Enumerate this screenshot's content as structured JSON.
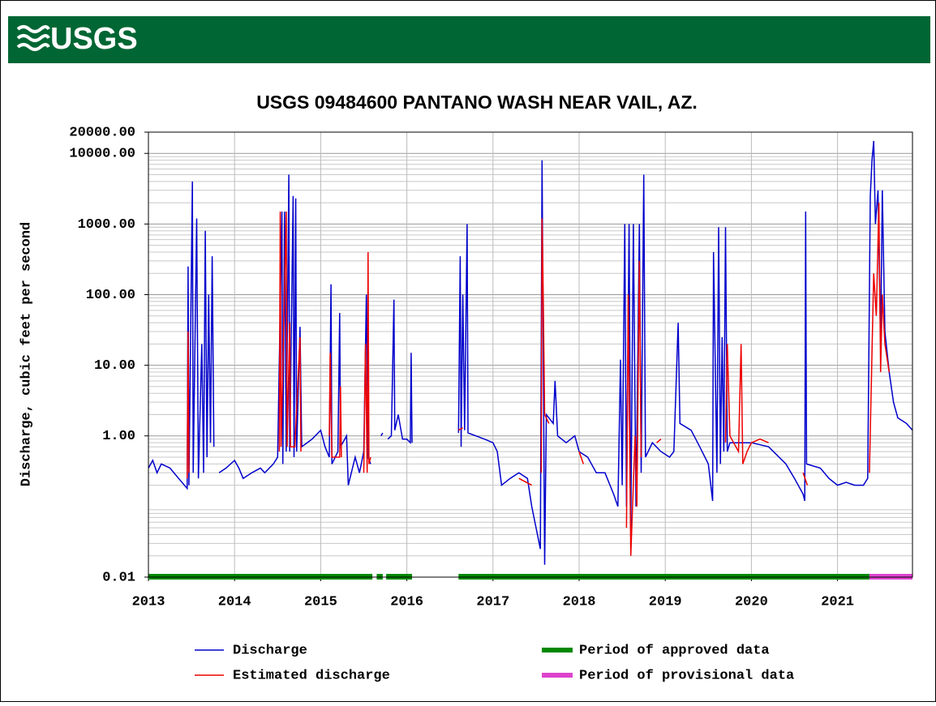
{
  "header": {
    "logo": "USGS"
  },
  "chart_data": {
    "type": "line",
    "title": "USGS 09484600 PANTANO WASH NEAR VAIL, AZ.",
    "y_label": "Discharge, cubic feet per second",
    "xlim": [
      2013,
      2021.87
    ],
    "xticks": [
      2013,
      2014,
      2015,
      2016,
      2017,
      2018,
      2019,
      2020,
      2021
    ],
    "ylim": [
      0.01,
      20000
    ],
    "ylog": true,
    "grid": true,
    "legend": "bottom",
    "yticks": [
      {
        "value": 0.01,
        "label": "0.01"
      },
      {
        "value": 1,
        "label": "1.00"
      },
      {
        "value": 10,
        "label": "10.00"
      },
      {
        "value": 100,
        "label": "100.00"
      },
      {
        "value": 1000,
        "label": "1000.00"
      },
      {
        "value": 10000,
        "label": "10000.00"
      },
      {
        "value": 20000,
        "label": "20000.00"
      }
    ],
    "series": [
      {
        "name": "Discharge",
        "color": "#0000cc",
        "x": [
          2013.0,
          2013.05,
          2013.1,
          2013.15,
          2013.25,
          2013.35,
          2013.45,
          2013.46,
          2013.47,
          2013.51,
          2013.52,
          2013.56,
          2013.58,
          2013.62,
          2013.64,
          2013.66,
          2013.68,
          2013.7,
          2013.72,
          2013.74,
          2013.76,
          null,
          2013.82,
          2013.9,
          2014.0,
          2014.05,
          2014.1,
          2014.2,
          2014.3,
          2014.35,
          2014.45,
          2014.5,
          2014.55,
          2014.56,
          2014.58,
          2014.6,
          2014.63,
          2014.64,
          2014.68,
          2014.69,
          2014.71,
          2014.72,
          2014.76,
          2014.78,
          2014.9,
          2015.0,
          2015.05,
          2015.1,
          2015.12,
          2015.13,
          2015.2,
          2015.22,
          2015.23,
          2015.3,
          2015.32,
          2015.4,
          2015.45,
          2015.5,
          2015.53,
          2015.55,
          2015.58,
          null,
          2015.7,
          2015.72,
          null,
          2015.78,
          2015.82,
          2015.85,
          2015.86,
          2015.9,
          2015.95,
          2016.0,
          2016.04,
          2016.05,
          2016.06,
          null,
          2016.6,
          2016.62,
          2016.63,
          2016.65,
          2016.67,
          2016.7,
          2016.71,
          2016.8,
          2016.9,
          2017.0,
          2017.05,
          2017.1,
          2017.2,
          2017.3,
          2017.4,
          2017.45,
          2017.5,
          2017.55,
          2017.57,
          2017.6,
          2017.62,
          2017.7,
          2017.72,
          2017.75,
          2017.85,
          2017.95,
          2018.0,
          2018.1,
          2018.2,
          2018.3,
          2018.4,
          2018.45,
          2018.48,
          2018.5,
          2018.53,
          2018.55,
          2018.58,
          2018.6,
          2018.63,
          2018.66,
          2018.7,
          2018.72,
          2018.75,
          2018.77,
          2018.85,
          2018.95,
          2019.05,
          2019.1,
          2019.15,
          2019.17,
          2019.3,
          2019.4,
          2019.5,
          2019.55,
          2019.56,
          2019.6,
          2019.62,
          2019.64,
          2019.66,
          2019.68,
          2019.7,
          2019.72,
          2019.75,
          2020.0,
          2020.2,
          2020.4,
          2020.5,
          2020.6,
          2020.62,
          2020.63,
          2020.64,
          2020.8,
          2020.9,
          2021.0,
          2021.1,
          2021.2,
          2021.3,
          2021.35,
          2021.38,
          2021.4,
          2021.42,
          2021.44,
          2021.47,
          2021.5,
          2021.52,
          2021.55,
          2021.6,
          2021.65,
          2021.7,
          2021.8,
          2021.87
        ],
        "values": [
          0.35,
          0.45,
          0.3,
          0.4,
          0.35,
          0.25,
          0.18,
          250,
          0.2,
          4000,
          0.3,
          1200,
          0.25,
          20,
          0.3,
          800,
          0.5,
          100,
          0.8,
          350,
          0.7,
          null,
          0.3,
          0.35,
          0.45,
          0.35,
          0.25,
          0.3,
          0.35,
          0.3,
          0.4,
          0.5,
          1500,
          0.4,
          1500,
          0.6,
          5000,
          0.6,
          2500,
          0.5,
          2300,
          0.6,
          35,
          0.7,
          0.9,
          1.2,
          0.7,
          0.5,
          140,
          0.4,
          0.6,
          55,
          0.7,
          1.0,
          0.2,
          0.5,
          0.3,
          0.6,
          100,
          0.5,
          0.4,
          null,
          1.0,
          1.1,
          null,
          0.9,
          1.0,
          85,
          1.2,
          2.0,
          0.9,
          0.9,
          0.8,
          15,
          0.8,
          null,
          1.1,
          350,
          0.7,
          100,
          1.2,
          1000,
          1.1,
          1.0,
          0.9,
          0.8,
          0.6,
          0.2,
          0.25,
          0.3,
          0.25,
          0.1,
          0.05,
          0.025,
          8000,
          0.015,
          2,
          1.5,
          6,
          1.0,
          0.8,
          1.0,
          0.6,
          0.5,
          0.3,
          0.3,
          0.15,
          0.1,
          12,
          0.2,
          1000,
          0.1,
          1000,
          0.05,
          1000,
          0.1,
          1000,
          0.3,
          5000,
          0.5,
          0.8,
          0.6,
          0.5,
          0.6,
          40,
          1.5,
          1.2,
          0.7,
          0.4,
          0.12,
          400,
          0.3,
          900,
          0.4,
          25,
          0.6,
          900,
          0.6,
          0.8,
          0.8,
          0.7,
          0.4,
          0.25,
          0.15,
          0.12,
          1500,
          0.4,
          0.35,
          0.25,
          0.2,
          0.22,
          0.2,
          0.2,
          0.25,
          2500,
          8000,
          15000,
          1000,
          3000,
          20,
          3000,
          30,
          8,
          3,
          1.8,
          1.5,
          1.2
        ]
      },
      {
        "name": "Estimated discharge",
        "color": "#ee0000",
        "x": [
          2013.45,
          2013.46,
          2013.47,
          null,
          2014.52,
          2014.53,
          2014.54,
          2014.6,
          2014.61,
          2014.64,
          2014.65,
          2014.7,
          2014.76,
          2014.77,
          null,
          2015.1,
          2015.11,
          2015.13,
          2015.22,
          2015.23,
          2015.24,
          null,
          2015.5,
          2015.52,
          2015.54,
          2015.55,
          2015.56,
          2015.58,
          null,
          2016.6,
          2016.65,
          null,
          2017.3,
          2017.45,
          null,
          2017.56,
          2017.57,
          2017.58,
          2017.6,
          2017.65,
          null,
          2018.0,
          2018.05,
          null,
          2018.55,
          2018.57,
          2018.6,
          2018.65,
          2018.67,
          2018.7,
          2018.72,
          null,
          2018.9,
          2018.95,
          null,
          2019.7,
          2019.72,
          2019.75,
          2019.85,
          2019.88,
          2019.9,
          2019.95,
          2020.0,
          2020.1,
          2020.2,
          null,
          2020.6,
          2020.65,
          null,
          2021.37,
          2021.42,
          2021.45,
          2021.48,
          2021.5,
          2021.52,
          2021.55,
          2021.6
        ],
        "values": [
          0.25,
          30,
          0.3,
          null,
          0.6,
          1500,
          0.7,
          1500,
          0.7,
          40,
          0.7,
          0.7,
          25,
          0.6,
          null,
          1,
          15,
          0.5,
          0.5,
          5,
          0.5,
          null,
          0.3,
          20,
          0.3,
          400,
          0.4,
          0.5,
          null,
          1.2,
          1.3,
          null,
          0.25,
          0.2,
          null,
          0.3,
          1200,
          200,
          2,
          1.5,
          null,
          0.6,
          0.4,
          null,
          0.05,
          100,
          0.02,
          1.0,
          0.1,
          300,
          0.5,
          null,
          0.8,
          0.9,
          null,
          0.8,
          20,
          1,
          0.6,
          20,
          0.4,
          0.6,
          0.8,
          0.9,
          0.8,
          null,
          0.3,
          0.2,
          null,
          0.3,
          200,
          50,
          2000,
          8,
          100,
          20,
          8
        ]
      }
    ],
    "periods": [
      {
        "name": "Period of approved data",
        "color": "#008800",
        "ranges": [
          [
            2013.0,
            2015.6
          ],
          [
            2015.65,
            2015.72
          ],
          [
            2015.76,
            2016.06
          ],
          [
            2016.6,
            2021.37
          ]
        ]
      },
      {
        "name": "Period of provisional data",
        "color": "#dd44cc",
        "ranges": [
          [
            2021.37,
            2021.87
          ]
        ]
      }
    ]
  }
}
